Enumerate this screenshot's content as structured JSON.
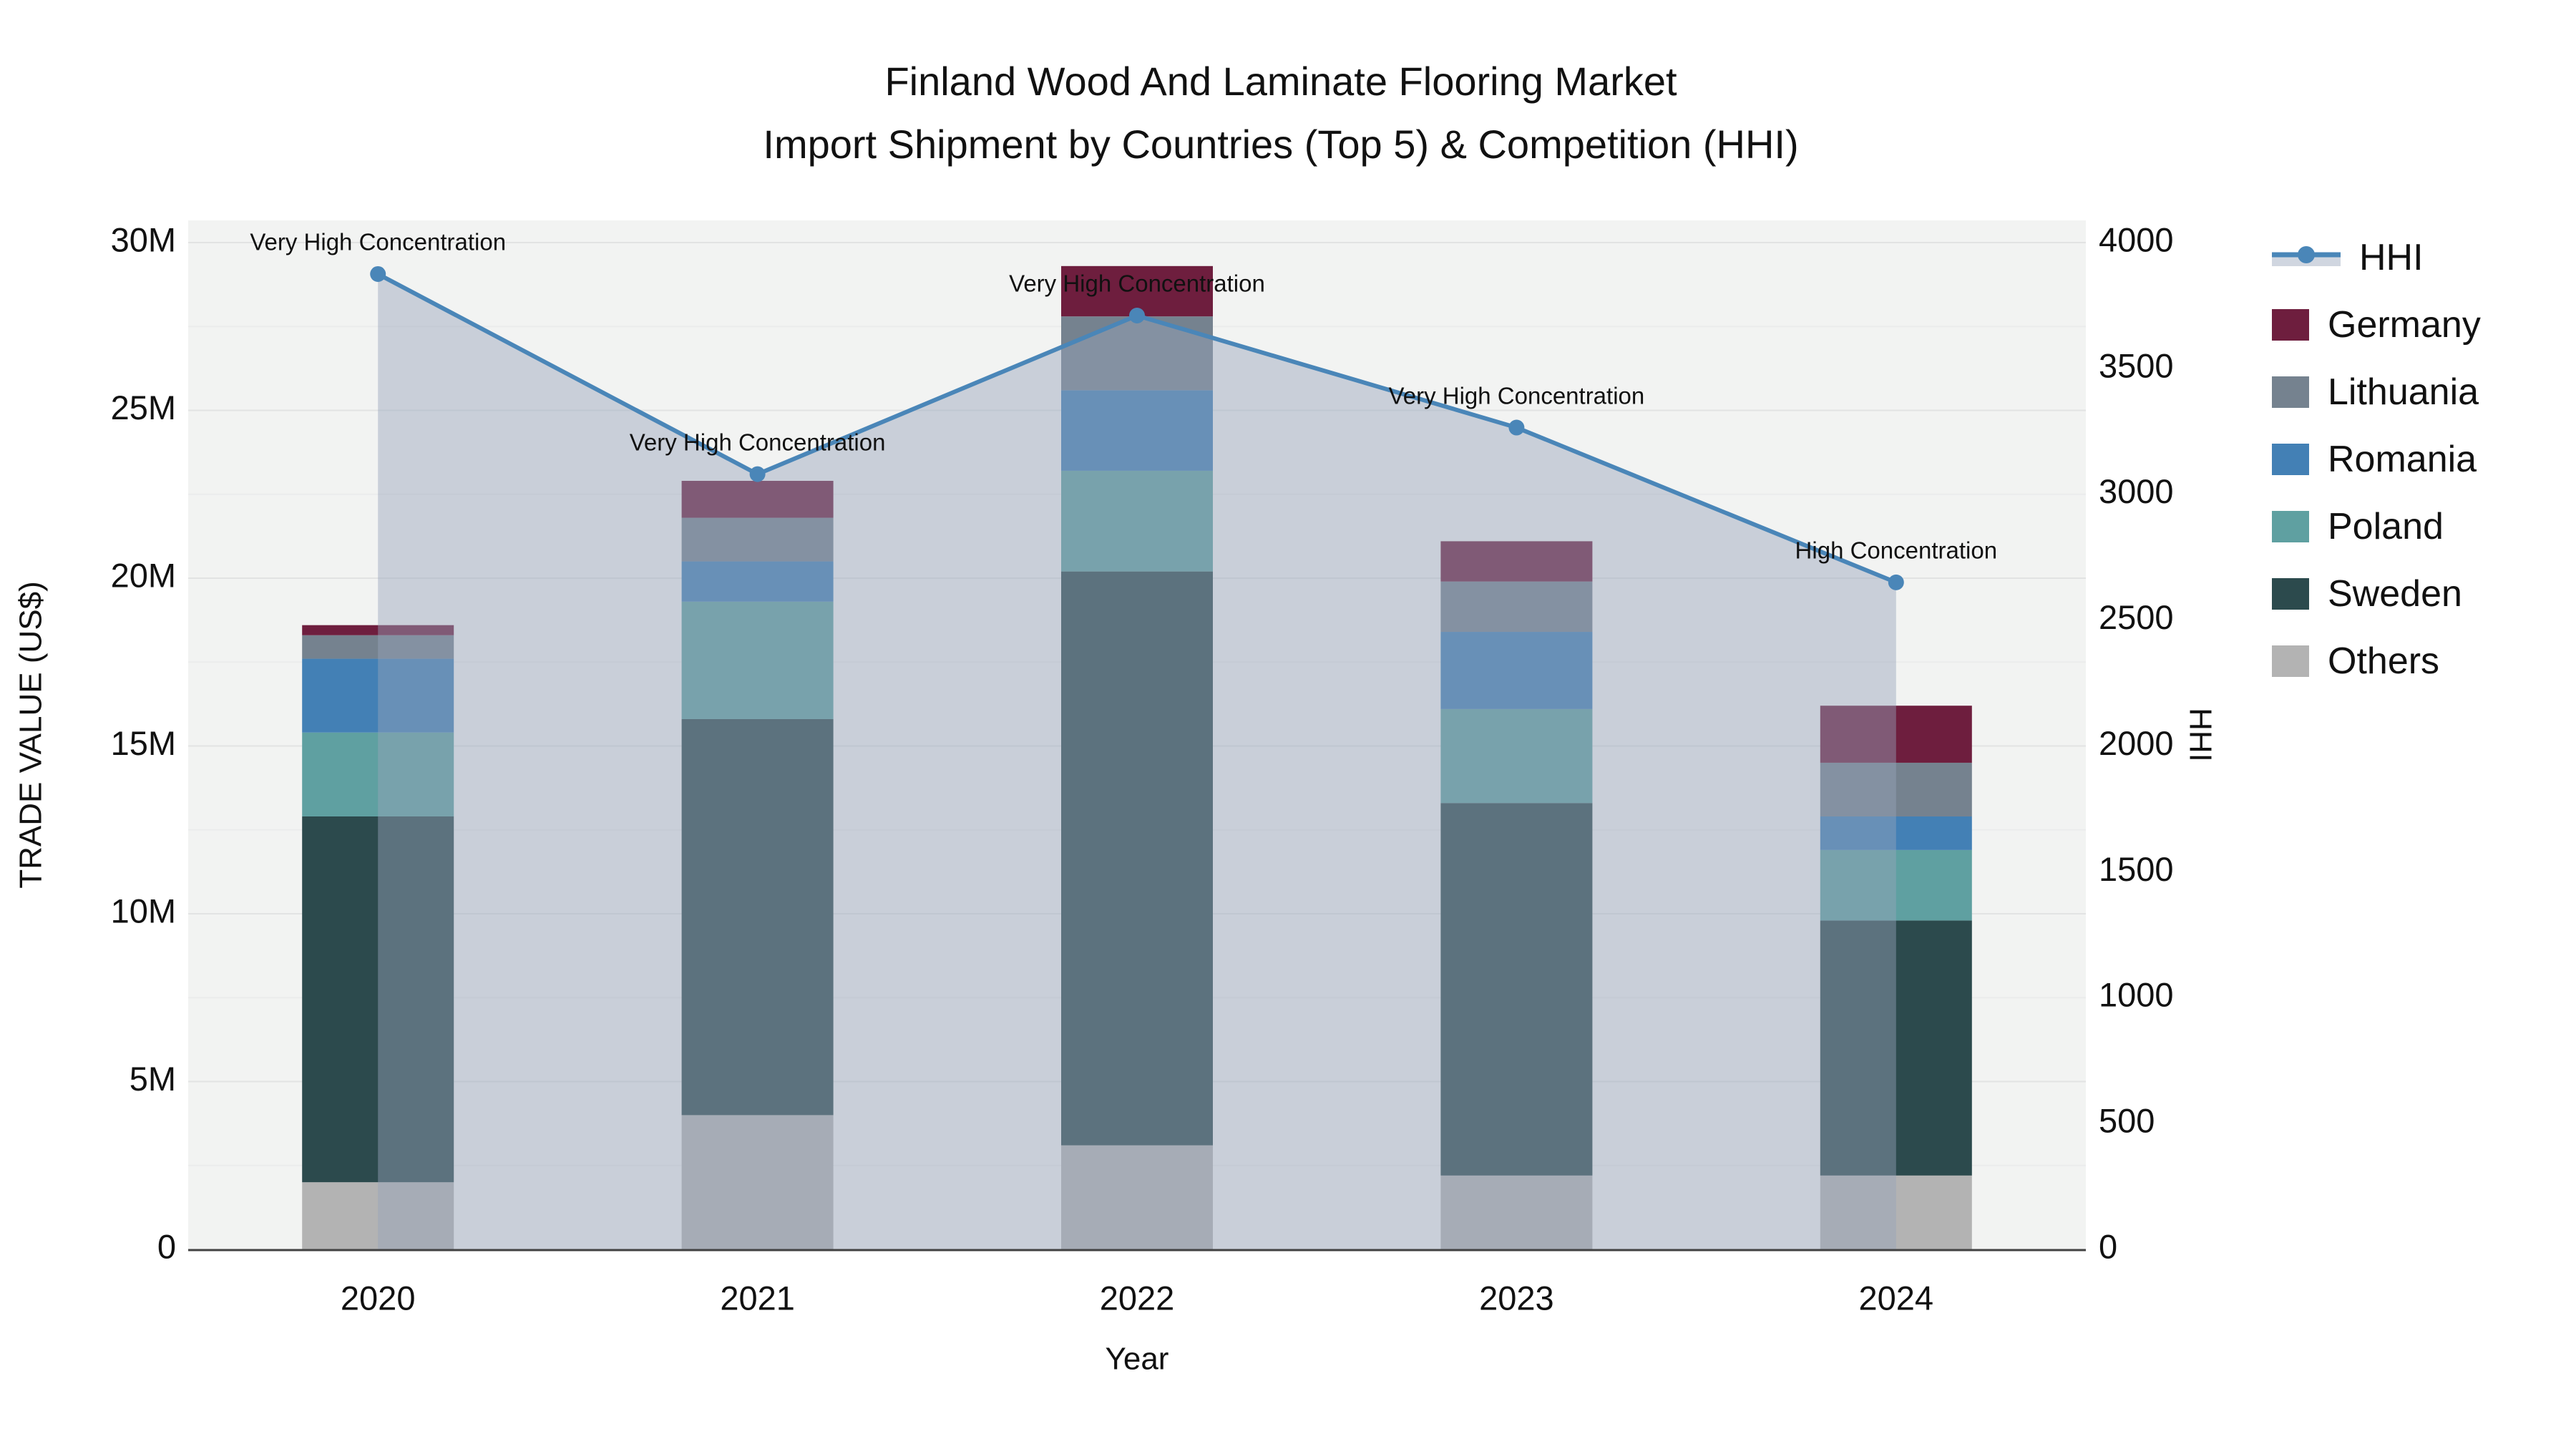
{
  "title": {
    "line1": "Finland Wood And Laminate Flooring Market",
    "line2": "Import Shipment by Countries (Top 5) & Competition (HHI)"
  },
  "axes": {
    "y_left": {
      "title": "TRADE VALUE (US$)",
      "tick_labels": [
        "0",
        "5M",
        "10M",
        "15M",
        "20M",
        "25M",
        "30M"
      ],
      "tick_values": [
        0,
        5,
        10,
        15,
        20,
        25,
        30
      ],
      "range": [
        0,
        30
      ]
    },
    "y_right": {
      "title": "HHI",
      "tick_labels": [
        "0",
        "500",
        "1000",
        "1500",
        "2000",
        "2500",
        "3000",
        "3500",
        "4000"
      ],
      "tick_values": [
        0,
        500,
        1000,
        1500,
        2000,
        2500,
        3000,
        3500,
        4000
      ],
      "range": [
        0,
        4000
      ]
    },
    "x": {
      "title": "Year",
      "tick_labels": [
        "2020",
        "2021",
        "2022",
        "2023",
        "2024"
      ]
    }
  },
  "legend": {
    "items": [
      {
        "label": "HHI",
        "kind": "line",
        "color": "#4a86b8"
      },
      {
        "label": "Germany",
        "kind": "swatch",
        "color": "#6e1e3e"
      },
      {
        "label": "Lithuania",
        "kind": "swatch",
        "color": "#75828f"
      },
      {
        "label": "Romania",
        "kind": "swatch",
        "color": "#4380b5"
      },
      {
        "label": "Poland",
        "kind": "swatch",
        "color": "#5fa0a1"
      },
      {
        "label": "Sweden",
        "kind": "swatch",
        "color": "#2c4a4d"
      },
      {
        "label": "Others",
        "kind": "swatch",
        "color": "#b3b3b3"
      }
    ]
  },
  "chart_data": {
    "type": "bar",
    "subtype": "stacked-bars-with-line",
    "categories": [
      "2020",
      "2021",
      "2022",
      "2023",
      "2024"
    ],
    "units": "million US$",
    "series": [
      {
        "name": "Others",
        "type": "bar",
        "color": "#b3b3b3",
        "values": [
          2.0,
          4.0,
          3.1,
          2.2,
          2.2
        ]
      },
      {
        "name": "Sweden",
        "type": "bar",
        "color": "#2c4a4d",
        "values": [
          10.9,
          11.8,
          17.1,
          11.1,
          7.6
        ]
      },
      {
        "name": "Poland",
        "type": "bar",
        "color": "#5fa0a1",
        "values": [
          2.5,
          3.5,
          3.0,
          2.8,
          2.1
        ]
      },
      {
        "name": "Romania",
        "type": "bar",
        "color": "#4380b5",
        "values": [
          2.2,
          1.2,
          2.4,
          2.3,
          1.0
        ]
      },
      {
        "name": "Lithuania",
        "type": "bar",
        "color": "#75828f",
        "values": [
          0.7,
          1.3,
          2.2,
          1.5,
          1.6
        ]
      },
      {
        "name": "Germany",
        "type": "bar",
        "color": "#6e1e3e",
        "values": [
          0.3,
          1.1,
          1.5,
          1.2,
          1.7
        ]
      }
    ],
    "bar_totals": [
      18.6,
      22.9,
      29.3,
      21.1,
      16.2
    ],
    "line_series": {
      "name": "HHI",
      "type": "line+area",
      "axis": "right",
      "color": "#4a86b8",
      "area_fill": "rgba(151,163,186,0.45)",
      "values": [
        3875,
        3080,
        3710,
        3265,
        2650
      ]
    },
    "annotations": [
      "Very High Concentration",
      "Very High Concentration",
      "Very High Concentration",
      "Very High Concentration",
      "High Concentration"
    ],
    "ylim_left": [
      0,
      30
    ],
    "ylim_right": [
      0,
      4000
    ],
    "grid": "horizontal, major every 5M with faint minor every 2.5M",
    "legend_position": "right",
    "plot_bg": "#f2f3f2"
  },
  "colors": {
    "hhi_line": "#4a86b8",
    "area_fill": "rgba(151,163,186,0.45)",
    "plot_bg": "#f2f3f2",
    "grid_major": "#e2e3e3",
    "grid_minor": "#ebecec",
    "axis_line": "#424242",
    "text": "#111111"
  }
}
